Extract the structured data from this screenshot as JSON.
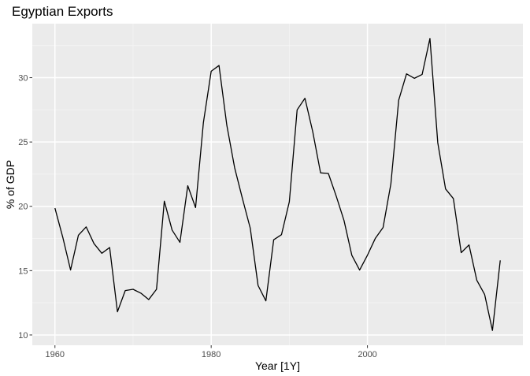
{
  "chart_data": {
    "type": "line",
    "title": "Egyptian Exports",
    "xlabel": "Year [1Y]",
    "ylabel": "% of GDP",
    "xlim": [
      1957.1,
      2019.9
    ],
    "ylim": [
      9.2,
      34.2
    ],
    "x_ticks": [
      1960,
      1980,
      2000
    ],
    "x_minor_ticks": [
      1970,
      1990,
      2010
    ],
    "y_ticks": [
      10,
      15,
      20,
      25,
      30
    ],
    "y_minor_ticks": [
      12.5,
      17.5,
      22.5,
      27.5,
      32.5
    ],
    "grid": true,
    "legend": "none",
    "colors": {
      "panel_background": "#ebebeb",
      "grid_major": "#ffffff",
      "grid_minor": "#f5f5f5",
      "line": "#000000",
      "tick_label": "#4d4d4d",
      "tick_mark": "#333333"
    },
    "series": [
      {
        "x": [
          1960,
          1961,
          1962,
          1963,
          1964,
          1965,
          1966,
          1967,
          1968,
          1969,
          1970,
          1971,
          1972,
          1973,
          1974,
          1975,
          1976,
          1977,
          1978,
          1979,
          1980,
          1981,
          1982,
          1983,
          1984,
          1985,
          1986,
          1987,
          1988,
          1989,
          1990,
          1991,
          1992,
          1993,
          1994,
          1995,
          1996,
          1997,
          1998,
          1999,
          2000,
          2001,
          2002,
          2003,
          2004,
          2005,
          2006,
          2007,
          2008,
          2009,
          2010,
          2011,
          2012,
          2013,
          2014,
          2015,
          2016,
          2017
        ],
        "values": [
          19.86,
          17.6,
          15.05,
          17.75,
          18.4,
          17.1,
          16.35,
          16.8,
          11.8,
          13.45,
          13.55,
          13.25,
          12.75,
          13.55,
          20.4,
          18.15,
          17.2,
          21.6,
          19.9,
          26.5,
          30.5,
          30.95,
          26.3,
          23.0,
          20.6,
          18.3,
          13.85,
          12.65,
          17.4,
          17.8,
          20.35,
          27.5,
          28.4,
          25.8,
          22.6,
          22.55,
          20.8,
          18.9,
          16.2,
          15.05,
          16.2,
          17.5,
          18.35,
          21.75,
          28.25,
          30.3,
          29.95,
          30.25,
          33.05,
          24.95,
          21.35,
          20.6,
          16.4,
          17.0,
          14.25,
          13.15,
          10.35,
          15.8
        ]
      }
    ]
  }
}
